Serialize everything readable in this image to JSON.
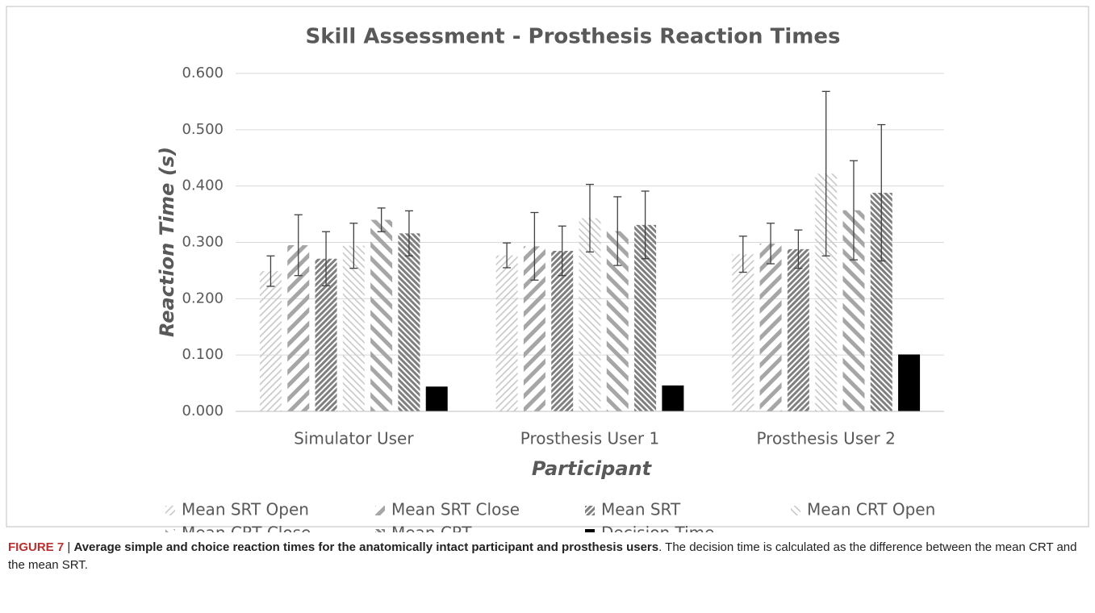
{
  "chart_data": {
    "type": "bar",
    "title": "Skill Assessment - Prosthesis Reaction Times",
    "x_label": "Participant",
    "y_label": "Reaction Time (s)",
    "categories": [
      "Simulator User",
      "Prosthesis User 1",
      "Prosthesis User 2"
    ],
    "ylim": [
      0,
      0.6
    ],
    "yticks": [
      {
        "value": 0,
        "label": "0.000"
      },
      {
        "value": 0.1,
        "label": "0.100"
      },
      {
        "value": 0.2,
        "label": "0.200"
      },
      {
        "value": 0.3,
        "label": "0.300"
      },
      {
        "value": 0.4,
        "label": "0.400"
      },
      {
        "value": 0.5,
        "label": "0.500"
      },
      {
        "value": 0.6,
        "label": "0.600"
      }
    ],
    "grid": true,
    "series": [
      {
        "name": "Mean SRT Open",
        "color": "#c8c8c8",
        "values": [
          0.249,
          0.277,
          0.279
        ],
        "errors": [
          0.027,
          0.022,
          0.032
        ]
      },
      {
        "name": "Mean SRT Close",
        "color": "#a6a6a6",
        "values": [
          0.295,
          0.293,
          0.298
        ],
        "errors": [
          0.054,
          0.06,
          0.036
        ]
      },
      {
        "name": "Mean SRT",
        "color": "#7f7f7f",
        "values": [
          0.271,
          0.285,
          0.288
        ],
        "errors": [
          0.048,
          0.044,
          0.034
        ]
      },
      {
        "name": "Mean CRT Open",
        "color": "#c8c8c8",
        "values": [
          0.294,
          0.343,
          0.422
        ],
        "errors": [
          0.04,
          0.06,
          0.146
        ]
      },
      {
        "name": "Mean CRT Close",
        "color": "#a6a6a6",
        "values": [
          0.34,
          0.32,
          0.357
        ],
        "errors": [
          0.021,
          0.061,
          0.088
        ]
      },
      {
        "name": "Mean CRT",
        "color": "#7f7f7f",
        "values": [
          0.316,
          0.331,
          0.388
        ],
        "errors": [
          0.04,
          0.06,
          0.121
        ]
      },
      {
        "name": "Decision Time",
        "color": "#000000",
        "values": [
          0.044,
          0.046,
          0.101
        ]
      }
    ]
  },
  "caption": {
    "label": "FIGURE 7",
    "separator": "|",
    "title": "Average simple and choice reaction times for the anatomically intact participant and prosthesis users",
    "text": ". The decision time is calculated as the difference between the mean CRT and the mean SRT."
  }
}
